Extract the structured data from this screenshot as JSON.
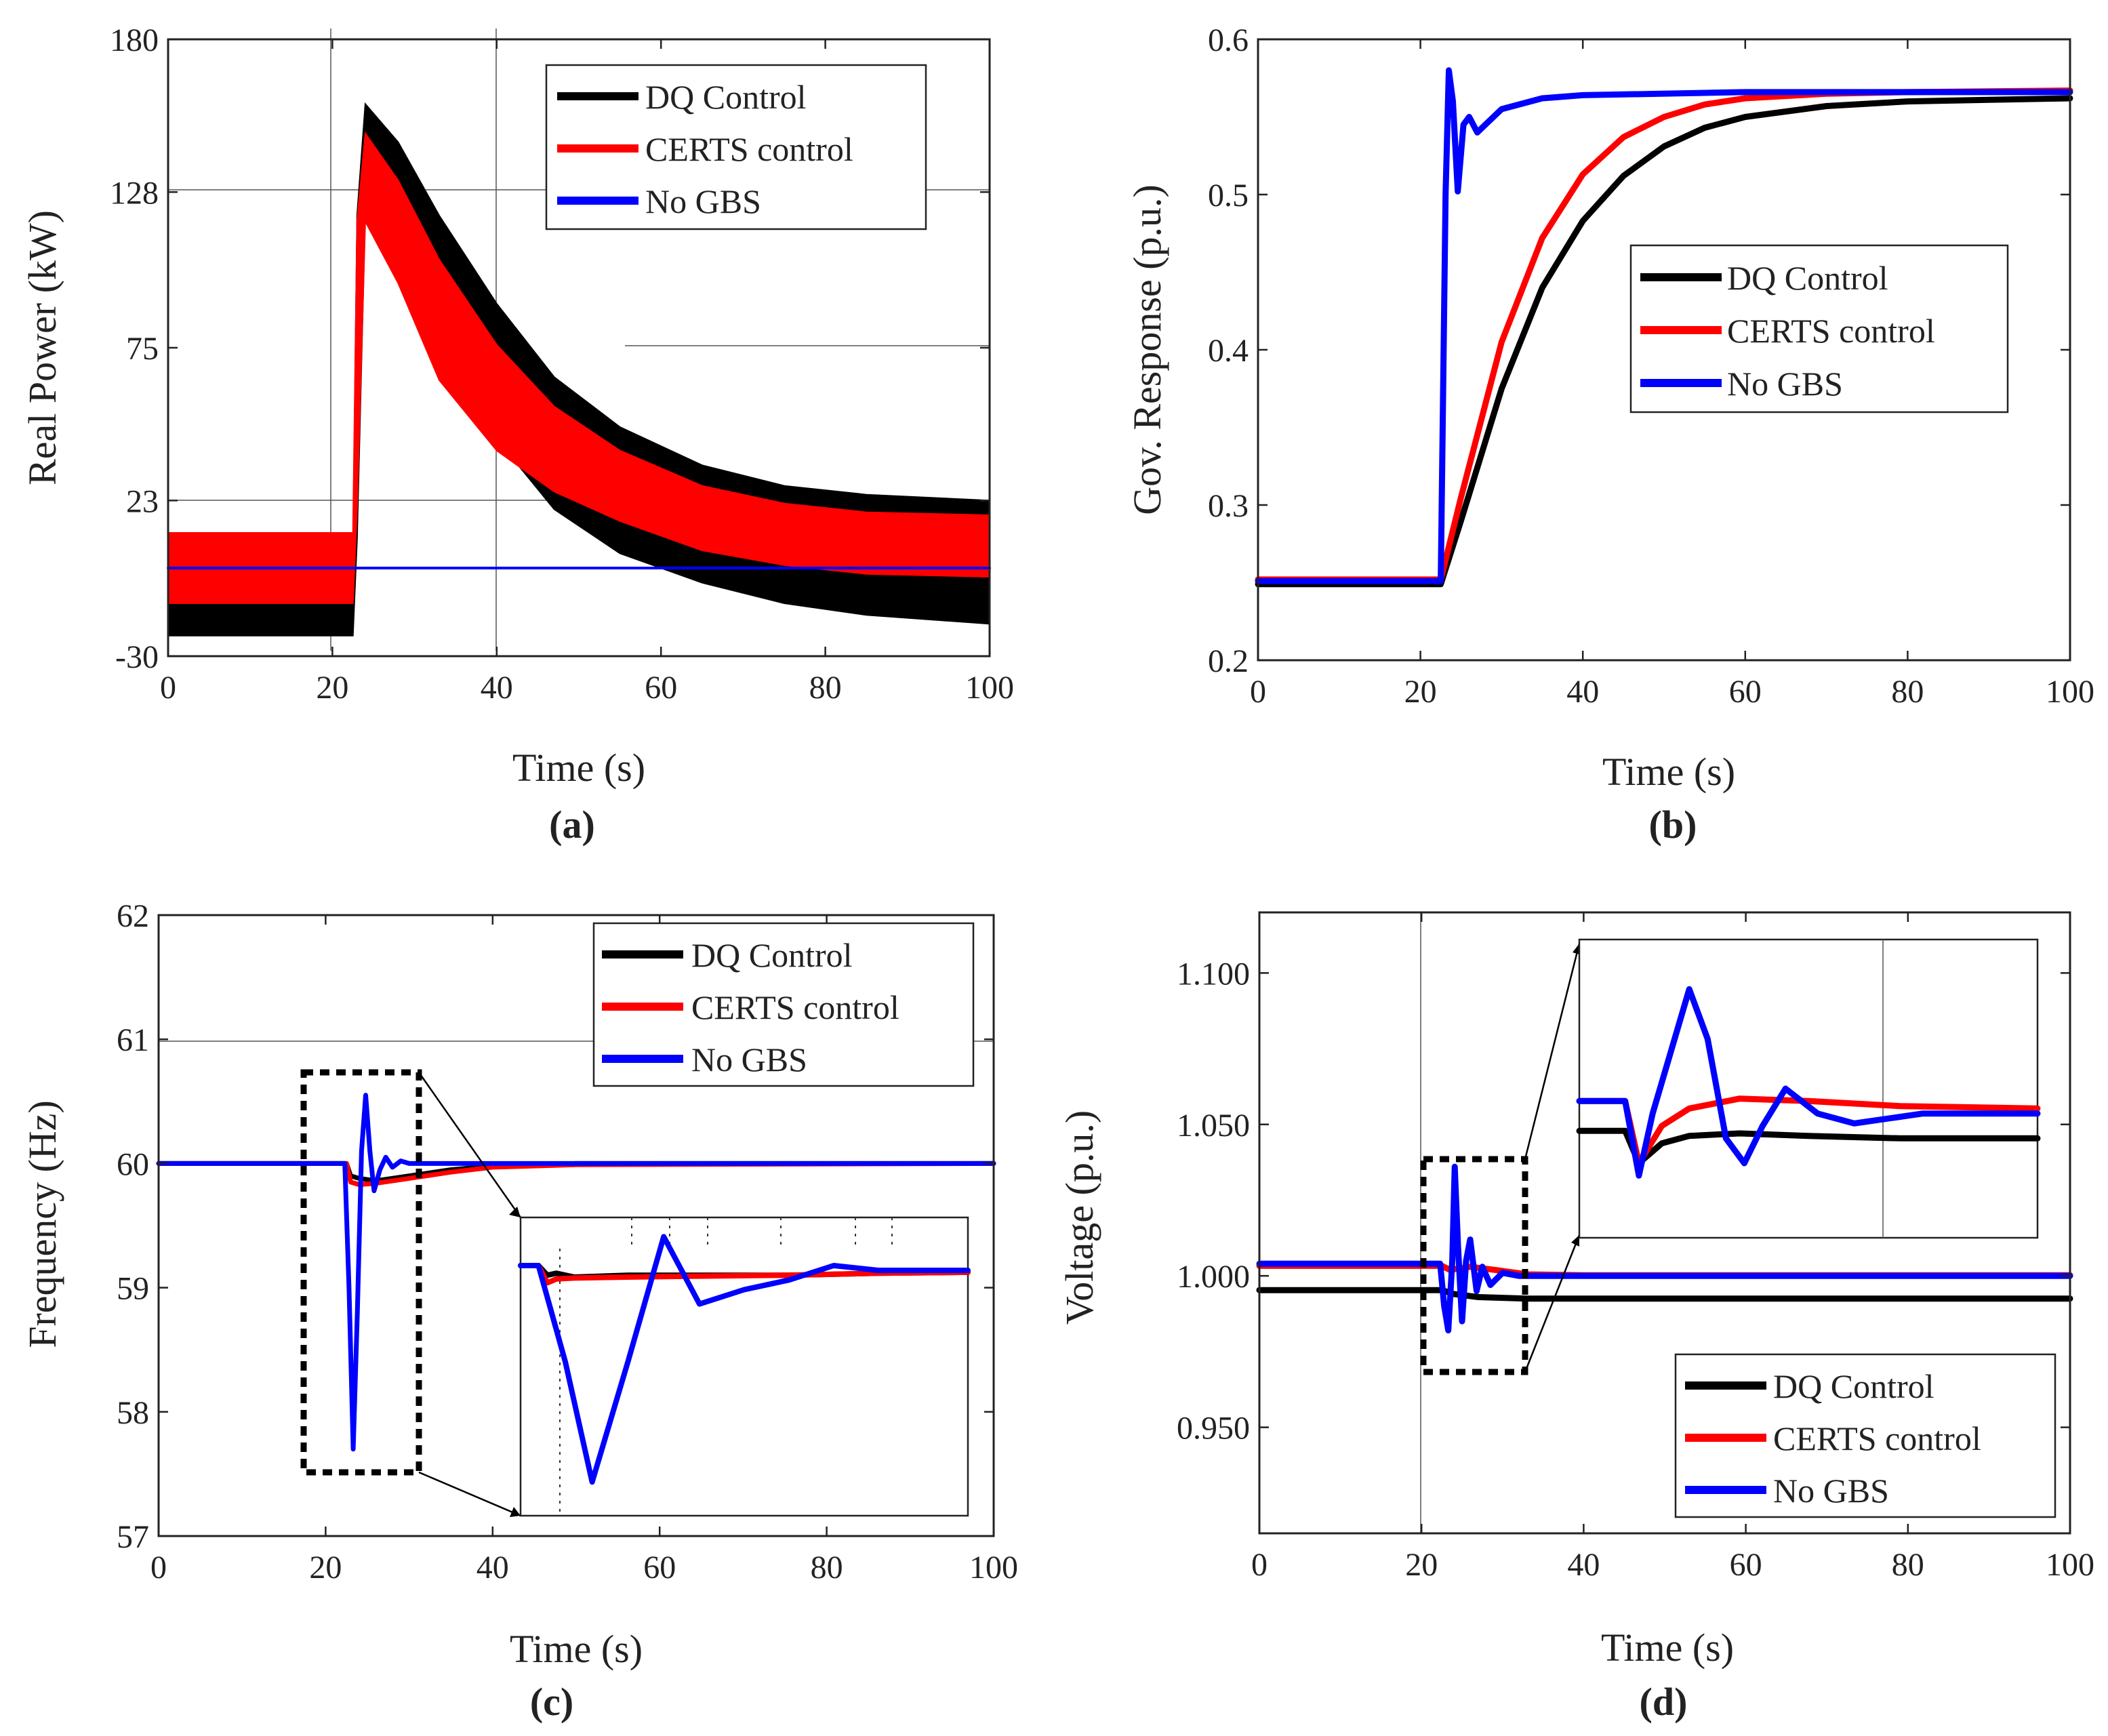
{
  "figure": {
    "colors": {
      "dq": "#000000",
      "certs": "#ff0000",
      "nogbs": "#0000ff",
      "axis": "#222222",
      "grid": "#555555"
    }
  },
  "chart_data": [
    {
      "id": "a",
      "type": "line",
      "caption": "(a)",
      "xlabel": "Time (s)",
      "ylabel": "Real Power (kW)",
      "xlim": [
        0,
        100
      ],
      "ylim": [
        -30,
        180
      ],
      "xticks": [
        0,
        20,
        40,
        60,
        80,
        100
      ],
      "yticks": [
        -30,
        23,
        75,
        128,
        180
      ],
      "legend_position": "top-right",
      "series": [
        {
          "name": "DQ Control",
          "color": "#000000",
          "kind": "band",
          "points": [
            [
              0,
              2,
              -23
            ],
            [
              22.5,
              2,
              -23
            ],
            [
              23,
              120,
              10
            ],
            [
              24,
              158,
              122
            ],
            [
              28,
              145,
              104
            ],
            [
              33,
              120,
              78
            ],
            [
              40,
              90,
              44
            ],
            [
              47,
              65,
              20
            ],
            [
              55,
              48,
              5
            ],
            [
              65,
              35,
              -5
            ],
            [
              75,
              28,
              -12
            ],
            [
              85,
              25,
              -16
            ],
            [
              100,
              23,
              -19
            ]
          ]
        },
        {
          "name": "CERTS control",
          "color": "#ff0000",
          "kind": "band",
          "points": [
            [
              0,
              12,
              -12
            ],
            [
              22.5,
              12,
              -12
            ],
            [
              23,
              118,
              20
            ],
            [
              24,
              148,
              118
            ],
            [
              28,
              132,
              97
            ],
            [
              33,
              105,
              64
            ],
            [
              40,
              76,
              40
            ],
            [
              47,
              55,
              26
            ],
            [
              55,
              40,
              16
            ],
            [
              65,
              28,
              6
            ],
            [
              75,
              22,
              1
            ],
            [
              85,
              19,
              -2
            ],
            [
              100,
              18,
              -3
            ]
          ]
        },
        {
          "name": "No GBS",
          "color": "#0000ff",
          "kind": "line",
          "points": [
            [
              0,
              0
            ],
            [
              100,
              0
            ]
          ]
        }
      ]
    },
    {
      "id": "b",
      "type": "line",
      "caption": "(b)",
      "xlabel": "Time (s)",
      "ylabel": "Gov. Response (p.u.)",
      "xlim": [
        0,
        100
      ],
      "ylim": [
        0.2,
        0.6
      ],
      "xticks": [
        0,
        20,
        40,
        60,
        80,
        100
      ],
      "yticks": [
        0.2,
        0.3,
        0.4,
        0.5,
        0.6
      ],
      "legend_position": "center-right",
      "series": [
        {
          "name": "DQ Control",
          "color": "#000000",
          "kind": "line",
          "points": [
            [
              0,
              0.249
            ],
            [
              22.5,
              0.249
            ],
            [
              25,
              0.29
            ],
            [
              30,
              0.375
            ],
            [
              35,
              0.44
            ],
            [
              40,
              0.483
            ],
            [
              45,
              0.512
            ],
            [
              50,
              0.531
            ],
            [
              55,
              0.543
            ],
            [
              60,
              0.55
            ],
            [
              70,
              0.557
            ],
            [
              80,
              0.56
            ],
            [
              100,
              0.562
            ]
          ]
        },
        {
          "name": "CERTS control",
          "color": "#ff0000",
          "kind": "line",
          "points": [
            [
              0,
              0.252
            ],
            [
              22.5,
              0.252
            ],
            [
              25,
              0.305
            ],
            [
              30,
              0.405
            ],
            [
              35,
              0.472
            ],
            [
              40,
              0.513
            ],
            [
              45,
              0.537
            ],
            [
              50,
              0.55
            ],
            [
              55,
              0.558
            ],
            [
              60,
              0.562
            ],
            [
              70,
              0.565
            ],
            [
              80,
              0.566
            ],
            [
              100,
              0.567
            ]
          ]
        },
        {
          "name": "No GBS",
          "color": "#0000ff",
          "kind": "line",
          "points": [
            [
              0,
              0.251
            ],
            [
              22.5,
              0.251
            ],
            [
              23.1,
              0.5
            ],
            [
              23.5,
              0.58
            ],
            [
              24,
              0.56
            ],
            [
              24.6,
              0.502
            ],
            [
              25.3,
              0.545
            ],
            [
              26,
              0.55
            ],
            [
              27,
              0.54
            ],
            [
              28,
              0.545
            ],
            [
              30,
              0.555
            ],
            [
              35,
              0.562
            ],
            [
              40,
              0.564
            ],
            [
              60,
              0.566
            ],
            [
              100,
              0.566
            ]
          ]
        }
      ]
    },
    {
      "id": "c",
      "type": "line",
      "caption": "(c)",
      "xlabel": "Time (s)",
      "ylabel": "Frequency (Hz)",
      "xlim": [
        0,
        100
      ],
      "ylim": [
        57,
        62
      ],
      "xticks": [
        0,
        20,
        40,
        60,
        80,
        100
      ],
      "yticks": [
        57,
        58,
        59,
        60,
        61,
        62
      ],
      "legend_position": "top-right",
      "series": [
        {
          "name": "DQ Control",
          "color": "#000000",
          "kind": "line",
          "points": [
            [
              0,
              60
            ],
            [
              22.5,
              60
            ],
            [
              23,
              59.9
            ],
            [
              24,
              59.88
            ],
            [
              26,
              59.86
            ],
            [
              30,
              59.9
            ],
            [
              35,
              59.95
            ],
            [
              40,
              59.98
            ],
            [
              50,
              60
            ],
            [
              100,
              60
            ]
          ]
        },
        {
          "name": "CERTS control",
          "color": "#ff0000",
          "kind": "line",
          "points": [
            [
              0,
              60
            ],
            [
              22.5,
              60
            ],
            [
              23,
              59.85
            ],
            [
              24,
              59.83
            ],
            [
              26,
              59.84
            ],
            [
              30,
              59.88
            ],
            [
              35,
              59.93
            ],
            [
              40,
              59.97
            ],
            [
              50,
              59.99
            ],
            [
              100,
              60
            ]
          ]
        },
        {
          "name": "No GBS",
          "color": "#0000ff",
          "kind": "line",
          "points": [
            [
              0,
              60
            ],
            [
              22.3,
              60
            ],
            [
              22.8,
              59
            ],
            [
              23.3,
              57.7
            ],
            [
              23.8,
              58.8
            ],
            [
              24.3,
              60.1
            ],
            [
              24.8,
              60.55
            ],
            [
              25.3,
              60.1
            ],
            [
              25.8,
              59.78
            ],
            [
              26.5,
              59.95
            ],
            [
              27.2,
              60.05
            ],
            [
              28,
              59.97
            ],
            [
              29,
              60.02
            ],
            [
              30,
              60
            ],
            [
              100,
              60
            ]
          ]
        }
      ]
    },
    {
      "id": "d",
      "type": "line",
      "caption": "(d)",
      "xlabel": "Time (s)",
      "ylabel": "Voltage (p.u.)",
      "xlim": [
        0,
        100
      ],
      "ylim": [
        0.915,
        1.12
      ],
      "xticks": [
        0,
        20,
        40,
        60,
        80,
        100
      ],
      "yticks": [
        0.95,
        1.0,
        1.05,
        1.1
      ],
      "ytick_labels": [
        "0.950",
        "1.000",
        "1.050",
        "1.100"
      ],
      "legend_position": "bottom-right",
      "series": [
        {
          "name": "DQ Control",
          "color": "#000000",
          "kind": "line",
          "points": [
            [
              0,
              0.9953
            ],
            [
              22.5,
              0.9953
            ],
            [
              24,
              0.994
            ],
            [
              27,
              0.993
            ],
            [
              33,
              0.9925
            ],
            [
              50,
              0.9925
            ],
            [
              100,
              0.9925
            ]
          ]
        },
        {
          "name": "CERTS control",
          "color": "#ff0000",
          "kind": "line",
          "points": [
            [
              0,
              1.0033
            ],
            [
              22.5,
              1.0033
            ],
            [
              23.5,
              1.002
            ],
            [
              26,
              1.003
            ],
            [
              29,
              1.002
            ],
            [
              33,
              1.0005
            ],
            [
              40,
              1.0002
            ],
            [
              100,
              1.0002
            ]
          ]
        },
        {
          "name": "No GBS",
          "color": "#0000ff",
          "kind": "line",
          "points": [
            [
              0,
              1.004
            ],
            [
              22.3,
              1.004
            ],
            [
              22.8,
              0.99
            ],
            [
              23.3,
              0.982
            ],
            [
              23.8,
              1.005
            ],
            [
              24.1,
              1.036
            ],
            [
              24.5,
              1.01
            ],
            [
              25,
              0.985
            ],
            [
              25.5,
              1.005
            ],
            [
              26,
              1.012
            ],
            [
              26.8,
              0.995
            ],
            [
              27.5,
              1.003
            ],
            [
              28.5,
              0.997
            ],
            [
              30,
              1.001
            ],
            [
              32,
              1.0
            ],
            [
              100,
              1.0
            ]
          ]
        }
      ]
    }
  ],
  "insets": {
    "c": {
      "series_points": {
        "DQ Control": [
          [
            0,
            60
          ],
          [
            2,
            60
          ],
          [
            3,
            59.9
          ],
          [
            4,
            59.92
          ],
          [
            6,
            59.88
          ],
          [
            12,
            59.9
          ],
          [
            20,
            59.9
          ],
          [
            30,
            59.9
          ],
          [
            40,
            59.92
          ],
          [
            50,
            59.93
          ]
        ],
        "CERTS control": [
          [
            0,
            60
          ],
          [
            2,
            60
          ],
          [
            3,
            59.82
          ],
          [
            4,
            59.86
          ],
          [
            6,
            59.87
          ],
          [
            12,
            59.88
          ],
          [
            20,
            59.89
          ],
          [
            30,
            59.9
          ],
          [
            40,
            59.92
          ],
          [
            50,
            59.93
          ]
        ],
        "No GBS": [
          [
            0,
            60
          ],
          [
            2,
            60
          ],
          [
            5,
            59
          ],
          [
            8,
            57.75
          ],
          [
            12,
            59
          ],
          [
            16,
            60.3
          ],
          [
            20,
            59.6
          ],
          [
            25,
            59.75
          ],
          [
            30,
            59.85
          ],
          [
            35,
            60
          ],
          [
            40,
            59.95
          ],
          [
            50,
            59.95
          ]
        ]
      }
    },
    "d": {
      "series_points": {
        "DQ Control": [
          [
            0,
            1.043
          ],
          [
            10,
            1.043
          ],
          [
            13,
            1.03
          ],
          [
            18,
            1.038
          ],
          [
            24,
            1.041
          ],
          [
            35,
            1.042
          ],
          [
            50,
            1.041
          ],
          [
            70,
            1.04
          ],
          [
            100,
            1.04
          ]
        ],
        "CERTS control": [
          [
            0,
            1.055
          ],
          [
            10,
            1.055
          ],
          [
            13,
            1.03
          ],
          [
            18,
            1.045
          ],
          [
            24,
            1.052
          ],
          [
            35,
            1.056
          ],
          [
            50,
            1.055
          ],
          [
            70,
            1.053
          ],
          [
            100,
            1.052
          ]
        ],
        "No GBS": [
          [
            0,
            1.055
          ],
          [
            10,
            1.055
          ],
          [
            13,
            1.025
          ],
          [
            16,
            1.05
          ],
          [
            20,
            1.075
          ],
          [
            24,
            1.1
          ],
          [
            28,
            1.08
          ],
          [
            32,
            1.04
          ],
          [
            36,
            1.03
          ],
          [
            40,
            1.045
          ],
          [
            45,
            1.06
          ],
          [
            52,
            1.05
          ],
          [
            60,
            1.046
          ],
          [
            75,
            1.05
          ],
          [
            100,
            1.05
          ]
        ]
      }
    }
  }
}
